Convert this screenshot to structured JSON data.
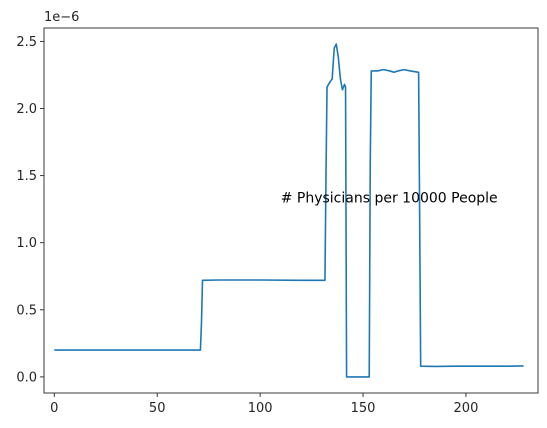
{
  "chart_data": {
    "type": "line",
    "title": "",
    "xlabel": "",
    "ylabel": "",
    "xlim": [
      -5,
      235
    ],
    "ylim": [
      -0.12,
      2.6
    ],
    "x_ticks": [
      0,
      50,
      100,
      150,
      200
    ],
    "y_ticks": [
      0.0,
      0.5,
      1.0,
      1.5,
      2.0,
      2.5
    ],
    "y_tick_labels": [
      "0.0",
      "0.5",
      "1.0",
      "1.5",
      "2.0",
      "2.5"
    ],
    "y_offset_label": "1e−6",
    "grid": false,
    "annotation": {
      "text": "# Physicians per 10000 People",
      "x": 110,
      "y": 1.3
    },
    "colors": {
      "line": "#1f77b4",
      "axes": "#262626"
    },
    "series": [
      {
        "values": [
          [
            0,
            0.2
          ],
          [
            71,
            0.2
          ],
          [
            71.5,
            0.4
          ],
          [
            72,
            0.72
          ],
          [
            80,
            0.722
          ],
          [
            100,
            0.722
          ],
          [
            120,
            0.72
          ],
          [
            131.5,
            0.72
          ],
          [
            132,
            1.5
          ],
          [
            132.5,
            2.16
          ],
          [
            134,
            2.2
          ],
          [
            135,
            2.22
          ],
          [
            136,
            2.45
          ],
          [
            137,
            2.48
          ],
          [
            138,
            2.38
          ],
          [
            139,
            2.22
          ],
          [
            140,
            2.14
          ],
          [
            141,
            2.18
          ],
          [
            141.5,
            2.16
          ],
          [
            142,
            0.0
          ],
          [
            153,
            0.0
          ],
          [
            153.5,
            1.6
          ],
          [
            154,
            2.28
          ],
          [
            157,
            2.28
          ],
          [
            160,
            2.29
          ],
          [
            163,
            2.28
          ],
          [
            165,
            2.27
          ],
          [
            167,
            2.28
          ],
          [
            170,
            2.29
          ],
          [
            173,
            2.28
          ],
          [
            177,
            2.27
          ],
          [
            177.5,
            1.2
          ],
          [
            178,
            0.08
          ],
          [
            185,
            0.078
          ],
          [
            195,
            0.08
          ],
          [
            210,
            0.08
          ],
          [
            220,
            0.08
          ],
          [
            228,
            0.082
          ]
        ]
      }
    ]
  }
}
